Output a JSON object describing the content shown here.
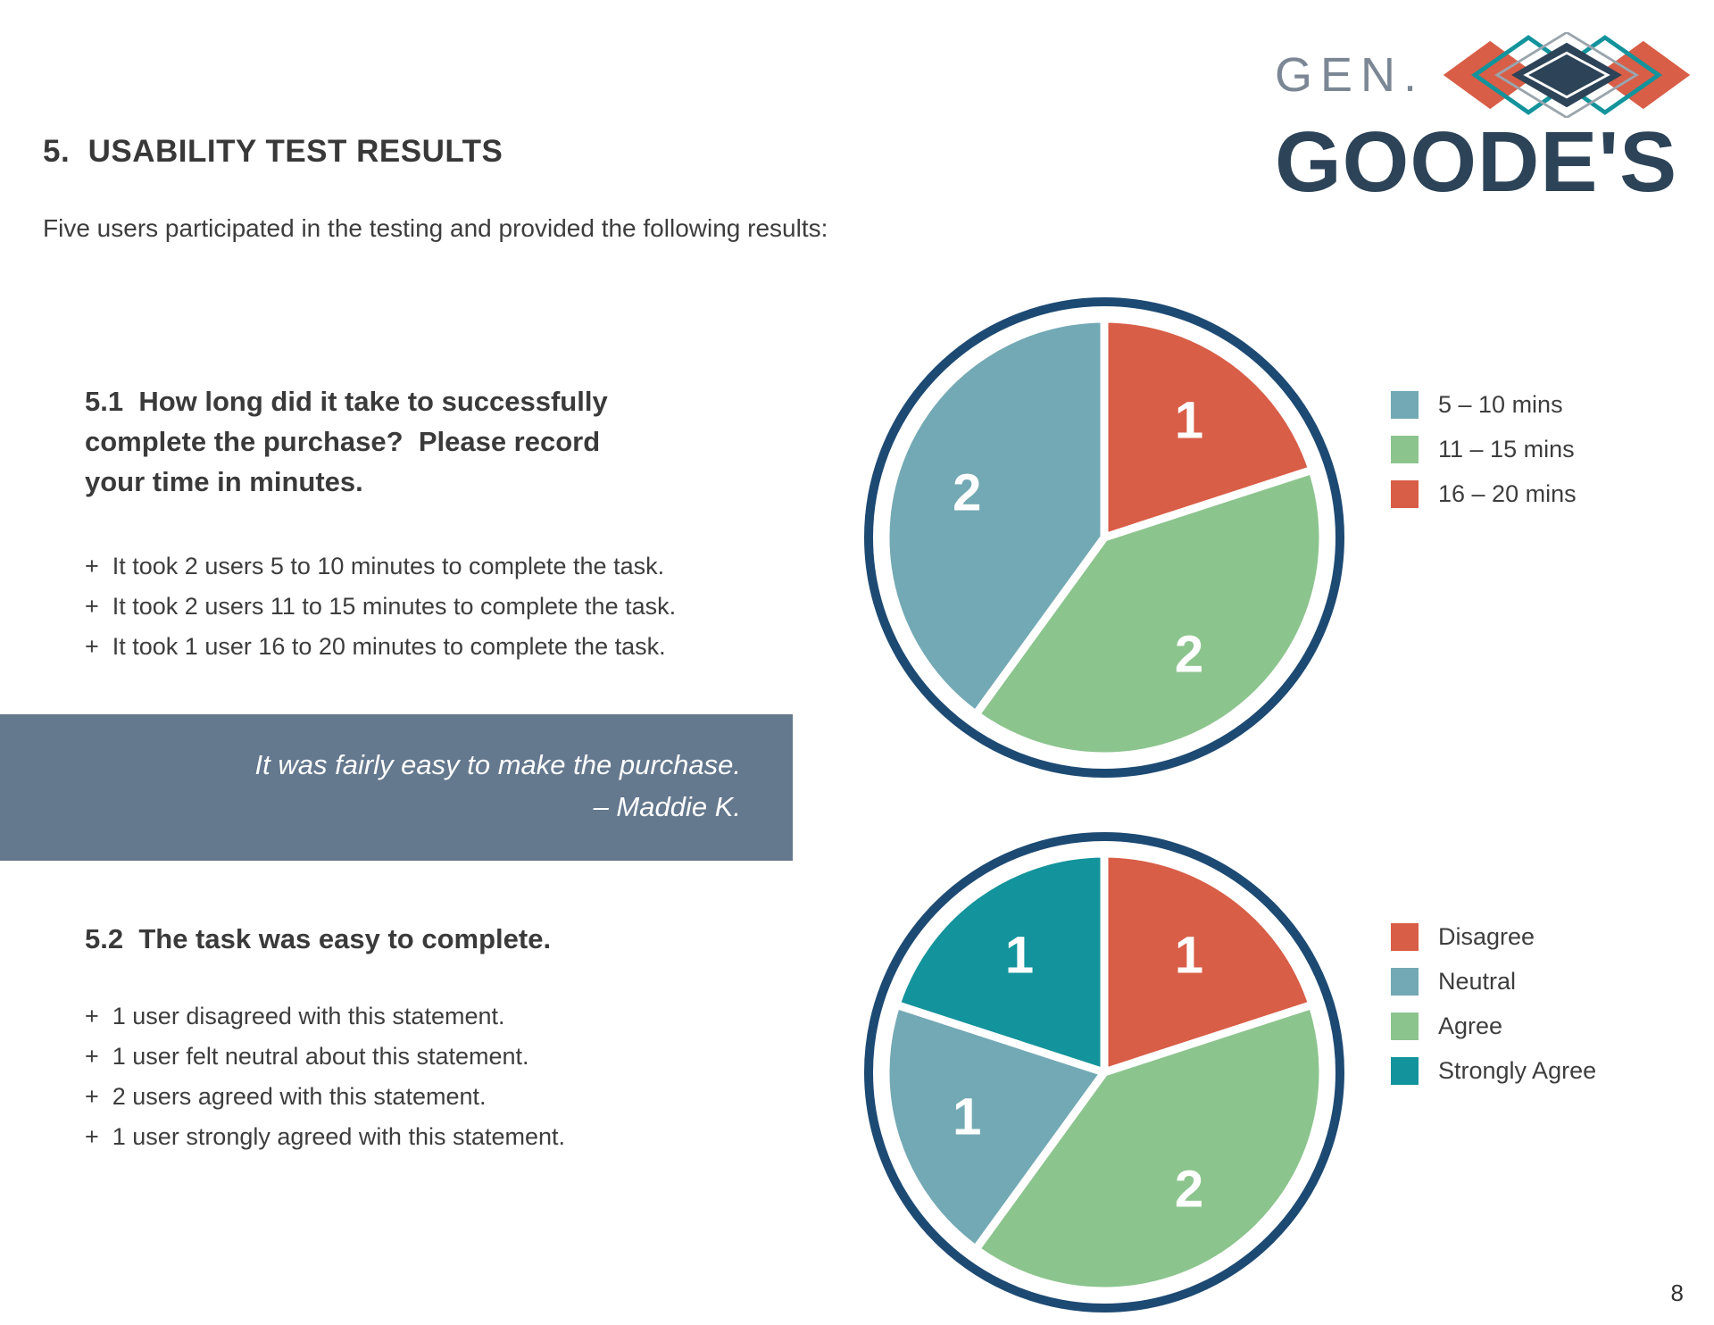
{
  "document": {
    "title": "5.  USABILITY TEST RESULTS",
    "intro": "Five users participated in the testing and provided the following results:",
    "page_number": "8"
  },
  "logo": {
    "line1": "GEN.",
    "line2": "GOODE'S"
  },
  "sections": {
    "s51": {
      "heading": "5.1  How long did it take to successfully\ncomplete the purchase?  Please record\nyour time in minutes.",
      "bullets": [
        "+  It took 2 users 5 to 10 minutes to complete the task.",
        "+  It took 2 users 11 to 15 minutes to complete the task.",
        "+  It took 1 user 16 to 20 minutes to complete the task."
      ]
    },
    "quote": {
      "text": "It was fairly easy to make the purchase.",
      "attribution": "– Maddie K."
    },
    "s52": {
      "heading": "5.2  The task was easy to complete.",
      "bullets": [
        "+  1 user disagreed with this statement.",
        "+  1 user felt neutral about this statement.",
        "+  2 users agreed with this statement.",
        "+  1 user strongly agreed with this statement."
      ]
    }
  },
  "theme": {
    "ring": "#1d4a73",
    "quote_bg": "#64788e",
    "text": "#3d3d3d",
    "logo_gray": "#7b8794",
    "logo_navy": "#2d4357",
    "red": "#d85e47",
    "green": "#8cc48e",
    "teal": "#73a9b4",
    "dark_teal": "#13939c"
  },
  "chart_data": [
    {
      "type": "pie",
      "units": "users",
      "total": 5,
      "legend_position": "right",
      "slices": [
        {
          "label": "16 – 20 mins",
          "value": 1,
          "color": "#d85e47"
        },
        {
          "label": "11 – 15 mins",
          "value": 2,
          "color": "#8cc48e"
        },
        {
          "label": "5 – 10 mins",
          "value": 2,
          "color": "#73a9b4"
        }
      ],
      "legend": [
        {
          "label": "5 – 10 mins",
          "color": "#73a9b4"
        },
        {
          "label": "11 – 15 mins",
          "color": "#8cc48e"
        },
        {
          "label": "16 – 20 mins",
          "color": "#d85e47"
        }
      ]
    },
    {
      "type": "pie",
      "units": "users",
      "total": 5,
      "legend_position": "right",
      "slices": [
        {
          "label": "Disagree",
          "value": 1,
          "color": "#d85e47"
        },
        {
          "label": "Agree",
          "value": 2,
          "color": "#8cc48e"
        },
        {
          "label": "Neutral",
          "value": 1,
          "color": "#73a9b4"
        },
        {
          "label": "Strongly Agree",
          "value": 1,
          "color": "#13939c"
        }
      ],
      "legend": [
        {
          "label": "Disagree",
          "color": "#d85e47"
        },
        {
          "label": "Neutral",
          "color": "#73a9b4"
        },
        {
          "label": "Agree",
          "color": "#8cc48e"
        },
        {
          "label": "Strongly Agree",
          "color": "#13939c"
        }
      ]
    }
  ]
}
